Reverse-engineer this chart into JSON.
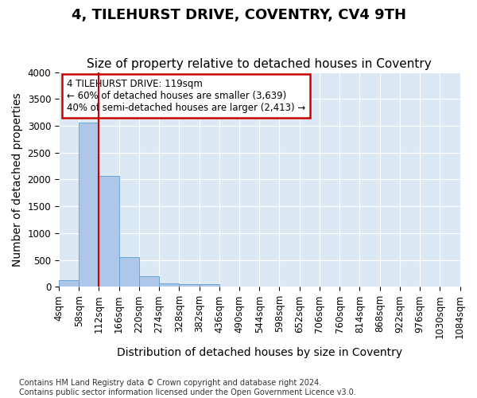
{
  "title": "4, TILEHURST DRIVE, COVENTRY, CV4 9TH",
  "subtitle": "Size of property relative to detached houses in Coventry",
  "xlabel": "Distribution of detached houses by size in Coventry",
  "ylabel": "Number of detached properties",
  "bin_labels": [
    "4sqm",
    "58sqm",
    "112sqm",
    "166sqm",
    "220sqm",
    "274sqm",
    "328sqm",
    "382sqm",
    "436sqm",
    "490sqm",
    "544sqm",
    "598sqm",
    "652sqm",
    "706sqm",
    "760sqm",
    "814sqm",
    "868sqm",
    "922sqm",
    "976sqm",
    "1030sqm",
    "1084sqm"
  ],
  "bar_heights": [
    130,
    3060,
    2070,
    560,
    200,
    70,
    55,
    50,
    0,
    0,
    0,
    0,
    0,
    0,
    0,
    0,
    0,
    0,
    0,
    0
  ],
  "bar_color": "#aec6e8",
  "bar_edge_color": "#5a9fd4",
  "property_line_x": 2,
  "property_line_color": "#cc0000",
  "annotation_text": "4 TILEHURST DRIVE: 119sqm\n← 60% of detached houses are smaller (3,639)\n40% of semi-detached houses are larger (2,413) →",
  "annotation_box_color": "#cc0000",
  "ylim": [
    0,
    4000
  ],
  "yticks": [
    0,
    500,
    1000,
    1500,
    2000,
    2500,
    3000,
    3500,
    4000
  ],
  "background_color": "#dce9f5",
  "footer_line1": "Contains HM Land Registry data © Crown copyright and database right 2024.",
  "footer_line2": "Contains public sector information licensed under the Open Government Licence v3.0.",
  "title_fontsize": 13,
  "subtitle_fontsize": 11,
  "axis_label_fontsize": 10,
  "tick_fontsize": 8.5,
  "annotation_fontsize": 8.5
}
